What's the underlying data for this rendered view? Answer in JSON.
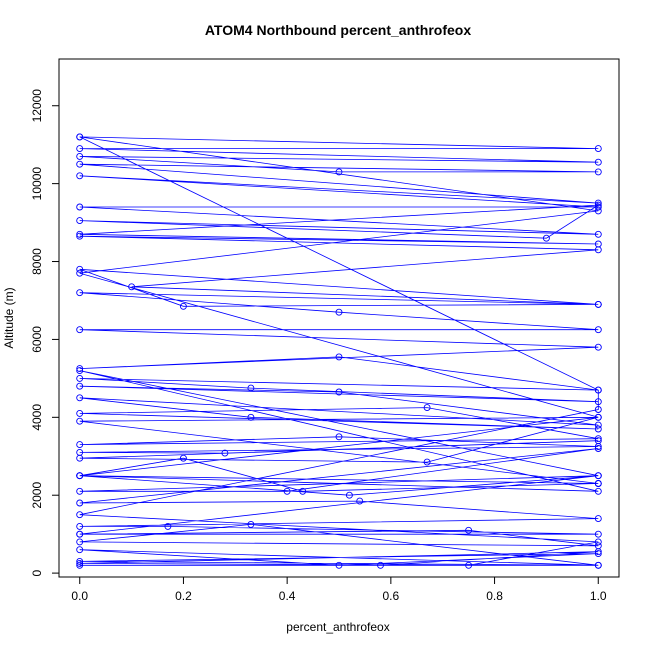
{
  "chart_data": {
    "type": "line",
    "title": "ATOM4 Northbound percent_anthrofeox",
    "xlabel": "percent_anthrofeox",
    "ylabel": "Altitude (m)",
    "xlim": [
      -0.04,
      1.04
    ],
    "ylim": [
      -100,
      13200
    ],
    "xticks": [
      0.0,
      0.2,
      0.4,
      0.6,
      0.8,
      1.0
    ],
    "xtick_labels": [
      "0.0",
      "0.2",
      "0.4",
      "0.6",
      "0.8",
      "1.0"
    ],
    "yticks": [
      0,
      2000,
      4000,
      6000,
      8000,
      10000,
      12000
    ],
    "ytick_labels": [
      "0",
      "2000",
      "4000",
      "6000",
      "8000",
      "10000",
      "12000"
    ],
    "grid": false,
    "legend": "none",
    "series_color": "#0000ff",
    "marker": "open-circle",
    "series": [
      {
        "x": [
          0.0,
          1.0,
          0.0,
          1.0,
          0.0,
          0.5,
          1.0,
          0.0,
          1.0,
          0.0,
          1.0,
          0.0,
          1.0,
          0.0,
          0.9,
          1.0,
          0.0,
          1.0,
          0.0,
          1.0,
          0.1,
          1.0,
          0.0,
          0.2,
          1.0,
          0.0,
          0.5,
          1.0,
          0.0,
          1.0,
          0.0,
          0.5,
          1.0,
          0.0,
          0.33,
          1.0,
          0.0,
          0.5,
          1.0,
          0.0,
          0.33,
          1.0,
          0.0,
          0.67,
          1.0,
          0.0,
          0.5,
          1.0,
          0.0,
          0.28,
          1.0,
          0.0,
          0.67,
          1.0,
          0.0,
          0.2,
          0.43,
          1.0,
          0.0,
          0.52,
          1.0,
          0.0,
          0.4,
          1.0,
          0.0,
          0.54,
          1.0,
          0.0,
          0.17,
          1.0,
          0.0,
          0.75,
          1.0,
          0.0,
          0.33,
          1.0,
          0.0,
          0.5,
          1.0,
          0.0,
          1.0,
          0.0,
          0.58,
          1.0,
          0.0,
          0.75,
          1.0,
          0.0,
          1.0,
          1.0,
          0.0,
          1.0,
          0.0,
          1.0,
          0.0,
          1.0,
          0.0,
          1.0,
          0.0,
          1.0,
          0.0
        ],
        "y": [
          11200,
          10900,
          10900,
          10550,
          10700,
          10300,
          10300,
          10500,
          9500,
          10200,
          9400,
          9400,
          8700,
          9050,
          8600,
          9450,
          8700,
          8450,
          8650,
          8300,
          7350,
          6900,
          7800,
          6850,
          6900,
          7200,
          6700,
          6250,
          6250,
          5800,
          5250,
          5550,
          4700,
          5000,
          4750,
          4400,
          4800,
          4650,
          3800,
          4500,
          4000,
          3700,
          4100,
          4250,
          3450,
          3300,
          3500,
          3250,
          3100,
          3080,
          3400,
          2950,
          2850,
          4000,
          2500,
          2950,
          2100,
          2300,
          2500,
          2000,
          2500,
          2100,
          2100,
          3200,
          1800,
          1850,
          1400,
          1200,
          1200,
          1000,
          1000,
          1100,
          700,
          800,
          1250,
          200,
          600,
          200,
          500,
          300,
          200,
          200,
          200,
          550,
          250,
          200,
          800,
          1500,
          4200,
          4700,
          11200,
          9300,
          7700,
          4000,
          3900,
          2300,
          2500,
          2100,
          5200,
          2500,
          1000
        ]
      }
    ]
  }
}
